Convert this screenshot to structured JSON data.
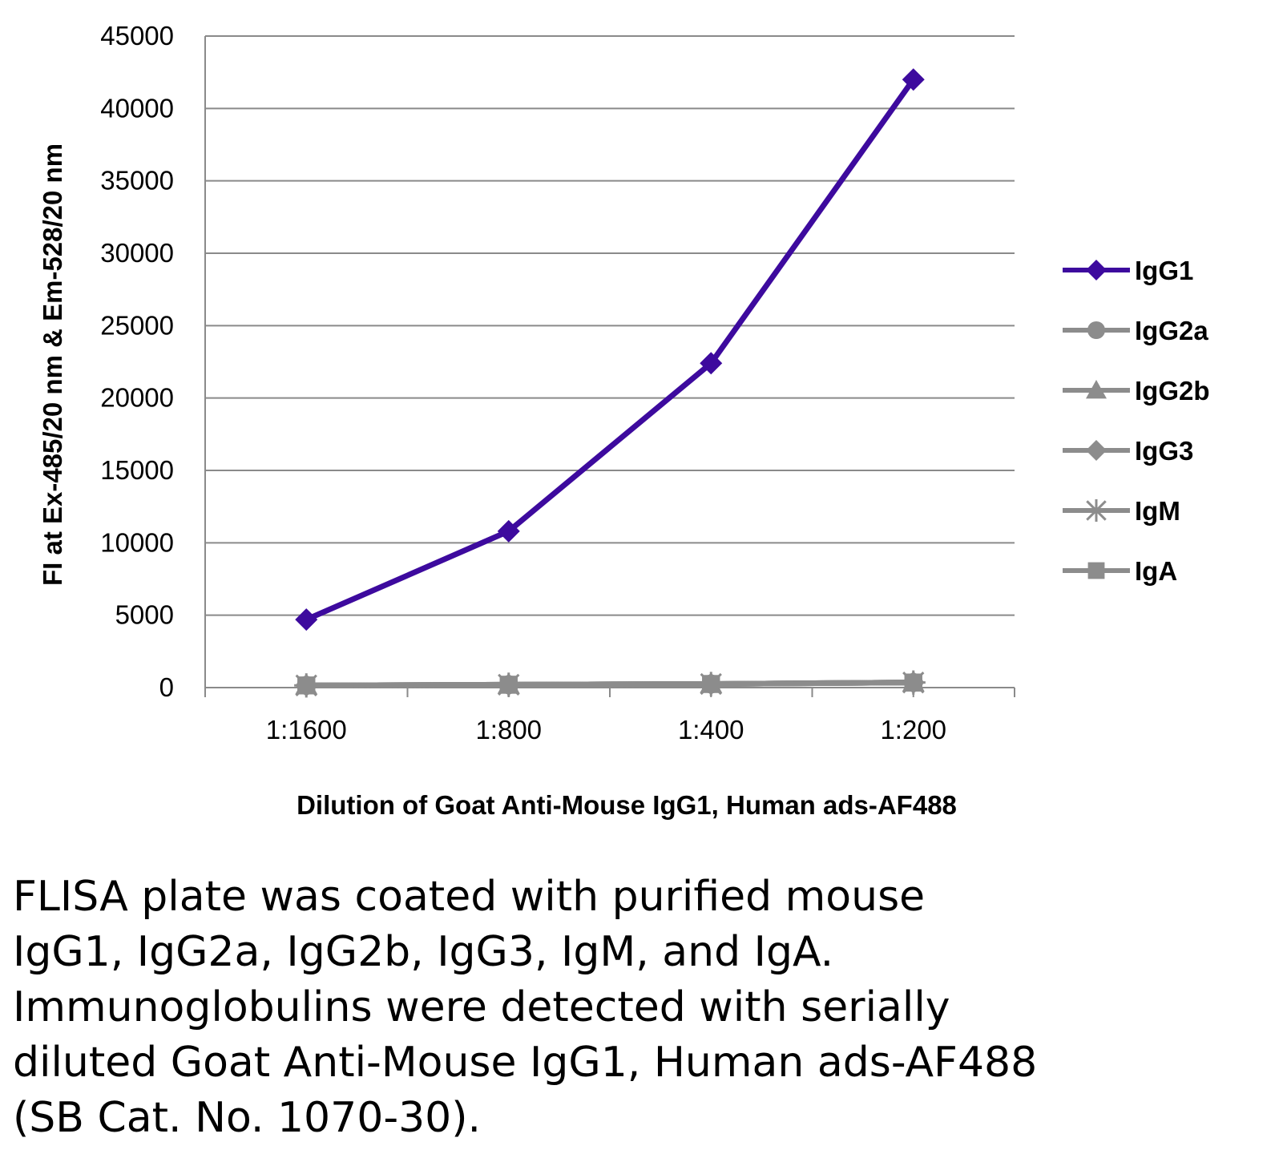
{
  "chart_data": {
    "type": "line",
    "categories": [
      "1:1600",
      "1:800",
      "1:400",
      "1:200"
    ],
    "xlabel": "Dilution of Goat Anti-Mouse IgG1, Human ads-AF488",
    "ylabel": "FI at Ex-485/20 nm & Em-528/20 nm",
    "ylim": [
      0,
      45000
    ],
    "yticks": [
      "0",
      "5000",
      "10000",
      "15000",
      "20000",
      "25000",
      "30000",
      "35000",
      "40000",
      "45000"
    ],
    "grid": true,
    "legend_position": "right",
    "series": [
      {
        "name": "IgG1",
        "marker": "diamond",
        "color": "#3d0a9e",
        "values": [
          4700,
          10800,
          22400,
          42000
        ]
      },
      {
        "name": "IgG2a",
        "marker": "circle",
        "color": "#8c8c8c",
        "values": [
          150,
          200,
          250,
          350
        ]
      },
      {
        "name": "IgG2b",
        "marker": "triangle",
        "color": "#8c8c8c",
        "values": [
          150,
          200,
          250,
          350
        ]
      },
      {
        "name": "IgG3",
        "marker": "diamond",
        "color": "#8c8c8c",
        "values": [
          150,
          200,
          250,
          350
        ]
      },
      {
        "name": "IgM",
        "marker": "star",
        "color": "#8c8c8c",
        "values": [
          150,
          200,
          250,
          350
        ]
      },
      {
        "name": "IgA",
        "marker": "square",
        "color": "#8c8c8c",
        "values": [
          150,
          200,
          250,
          350
        ]
      }
    ]
  },
  "caption": [
    "FLISA plate was coated with purified mouse",
    "IgG1, IgG2a, IgG2b, IgG3, IgM, and IgA.",
    "Immunoglobulins were detected with serially",
    "diluted Goat Anti-Mouse IgG1, Human ads-AF488",
    "(SB Cat. No. 1070-30)."
  ]
}
